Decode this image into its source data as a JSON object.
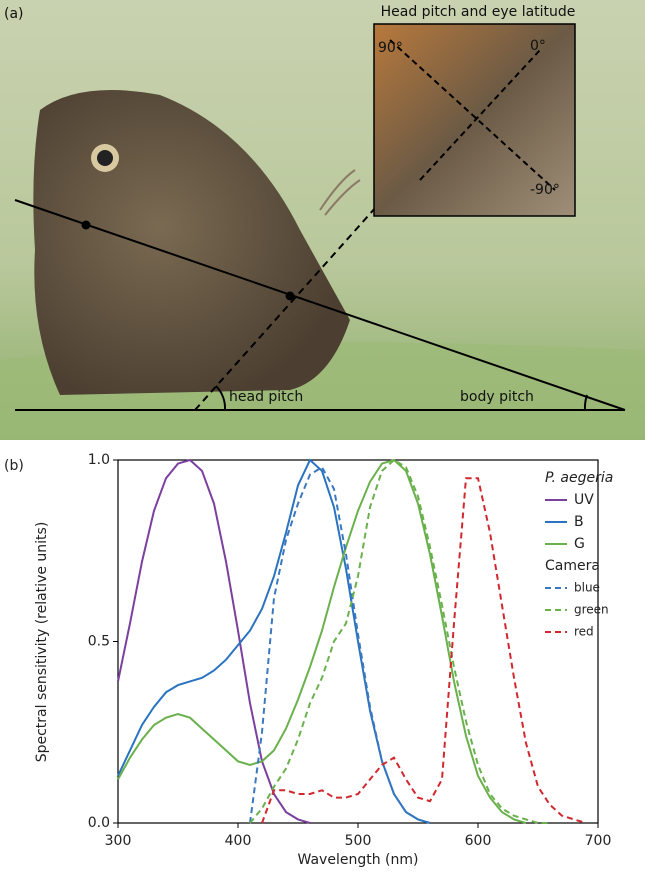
{
  "panel_a": {
    "label": "(a)",
    "inset_title": "Head pitch and eye latitude",
    "angle_90": "90°",
    "angle_0": "0°",
    "angle_minus_90": "-90°",
    "head_pitch": "head pitch",
    "body_pitch": "body pitch"
  },
  "chart_data": {
    "type": "line",
    "label": "(b)",
    "x_label": "Wavelength (nm)",
    "y_label": "Spectral sensitivity (relative units)",
    "x": [
      300,
      310,
      320,
      330,
      340,
      350,
      360,
      370,
      380,
      390,
      400,
      410,
      420,
      430,
      440,
      450,
      460,
      470,
      480,
      490,
      500,
      510,
      520,
      530,
      540,
      550,
      560,
      570,
      580,
      590,
      600,
      610,
      620,
      630,
      640,
      650,
      660,
      670,
      680,
      690,
      700
    ],
    "xlim": [
      300,
      700
    ],
    "xticks": [
      300,
      400,
      500,
      600,
      700
    ],
    "ylim": [
      0,
      1
    ],
    "yticks": [
      {
        "value": 0,
        "label": "0.0"
      },
      {
        "value": 0.5,
        "label": "0.5"
      },
      {
        "value": 1,
        "label": "1.0"
      }
    ],
    "series": [
      {
        "name": "UV",
        "color": "#7b3f9e",
        "legend_group": "P. aegeria",
        "values": [
          0.39,
          0.55,
          0.72,
          0.86,
          0.95,
          0.99,
          1.0,
          0.97,
          0.88,
          0.72,
          0.53,
          0.33,
          0.17,
          0.08,
          0.03,
          0.01,
          0.0,
          null,
          null,
          null,
          null,
          null,
          null,
          null,
          null,
          null,
          null,
          null,
          null,
          null,
          null,
          null,
          null,
          null,
          null,
          null,
          null,
          null,
          null,
          null,
          null
        ]
      },
      {
        "name": "B",
        "color": "#2a73c0",
        "values": [
          0.13,
          0.2,
          0.27,
          0.32,
          0.36,
          0.38,
          0.39,
          0.4,
          0.42,
          0.45,
          0.49,
          0.53,
          0.59,
          0.68,
          0.8,
          0.93,
          1.0,
          0.97,
          0.87,
          0.7,
          0.5,
          0.31,
          0.17,
          0.08,
          0.03,
          0.01,
          0.0,
          null,
          null,
          null,
          null,
          null,
          null,
          null,
          null,
          null,
          null,
          null,
          null,
          null,
          null
        ]
      },
      {
        "name": "G",
        "color": "#6ab04c",
        "values": [
          0.12,
          0.18,
          0.23,
          0.27,
          0.29,
          0.3,
          0.29,
          0.26,
          0.23,
          0.2,
          0.17,
          0.16,
          0.17,
          0.2,
          0.26,
          0.34,
          0.43,
          0.53,
          0.65,
          0.76,
          0.86,
          0.94,
          0.99,
          1.0,
          0.97,
          0.88,
          0.74,
          0.57,
          0.39,
          0.24,
          0.13,
          0.07,
          0.03,
          0.01,
          0.0,
          null,
          null,
          null,
          null,
          null,
          null
        ]
      },
      {
        "name": "blue",
        "color": "#3b78bf",
        "dashed": true,
        "legend_group": "Camera",
        "values": [
          null,
          null,
          null,
          null,
          null,
          null,
          null,
          null,
          null,
          null,
          null,
          0.0,
          0.25,
          0.62,
          0.78,
          0.88,
          0.96,
          0.98,
          0.92,
          0.74,
          0.52,
          0.32,
          0.17,
          0.08,
          0.03,
          0.01,
          0.0,
          null,
          null,
          null,
          null,
          null,
          null,
          null,
          null,
          null,
          null,
          null,
          null,
          null,
          null
        ]
      },
      {
        "name": "green",
        "color": "#6ab04c",
        "dashed": true,
        "values": [
          null,
          null,
          null,
          null,
          null,
          null,
          null,
          null,
          null,
          null,
          null,
          0.0,
          0.04,
          0.1,
          0.15,
          0.23,
          0.33,
          0.4,
          0.5,
          0.55,
          0.68,
          0.87,
          0.97,
          1.0,
          0.98,
          0.9,
          0.76,
          0.6,
          0.43,
          0.28,
          0.16,
          0.08,
          0.04,
          0.02,
          0.01,
          0.0,
          0.0,
          null,
          null,
          null,
          null
        ]
      },
      {
        "name": "red",
        "color": "#d0282e",
        "dashed": true,
        "values": [
          null,
          null,
          null,
          null,
          null,
          null,
          null,
          null,
          null,
          null,
          null,
          null,
          0.0,
          0.09,
          0.09,
          0.08,
          0.08,
          0.09,
          0.07,
          0.07,
          0.08,
          0.12,
          0.16,
          0.18,
          0.12,
          0.07,
          0.06,
          0.12,
          0.55,
          0.95,
          0.95,
          0.8,
          0.6,
          0.4,
          0.22,
          0.1,
          0.05,
          0.02,
          0.01,
          0.0,
          null
        ]
      }
    ]
  }
}
